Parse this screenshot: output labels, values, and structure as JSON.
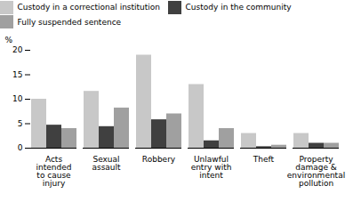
{
  "chart_data": {
    "type": "bar",
    "categories": [
      "Acts\nintended\nto cause\ninjury",
      "Sexual\nassault",
      "Robbery",
      "Unlawful\nentry with\nintent",
      "Theft",
      "Property\ndamage &\nenvironmental\npollution"
    ],
    "series": [
      {
        "name": "Custody in a correctional institution",
        "color": "#c8c8c8",
        "values": [
          10.0,
          11.6,
          19.0,
          13.0,
          3.0,
          3.0
        ]
      },
      {
        "name": "Custody in the community",
        "color": "#404040",
        "values": [
          4.7,
          4.4,
          5.8,
          1.5,
          0.3,
          1.0
        ]
      },
      {
        "name": "Fully suspended sentence",
        "color": "#a0a0a0",
        "values": [
          4.0,
          8.2,
          7.0,
          4.0,
          0.6,
          1.0
        ]
      }
    ],
    "ylabel": "%",
    "ylim": [
      0,
      20
    ],
    "yticks": [
      0,
      5,
      10,
      15,
      20
    ],
    "legend": "top",
    "grid": false
  }
}
